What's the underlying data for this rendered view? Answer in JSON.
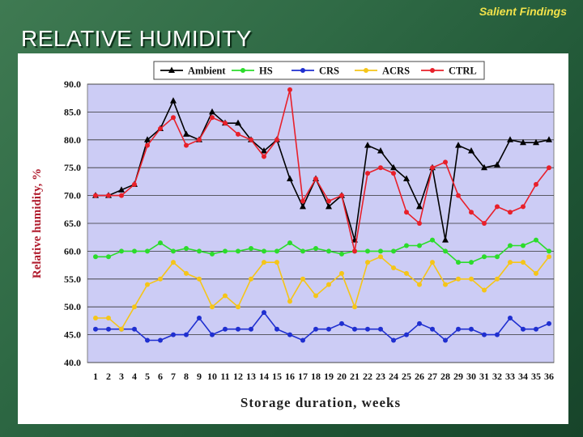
{
  "header": {
    "top_label": "Salient Findings",
    "title": "RELATIVE HUMIDITY"
  },
  "chart_data": {
    "type": "line",
    "xlabel": "Storage duration, weeks",
    "ylabel": "Relative humidity, %",
    "ylim": [
      40.0,
      90.0
    ],
    "yticks": [
      "40.0",
      "45.0",
      "50.0",
      "55.0",
      "60.0",
      "65.0",
      "70.0",
      "75.0",
      "80.0",
      "85.0",
      "90.0"
    ],
    "x": [
      1,
      2,
      3,
      4,
      5,
      6,
      7,
      8,
      9,
      10,
      11,
      12,
      13,
      14,
      15,
      16,
      17,
      18,
      19,
      20,
      21,
      22,
      23,
      24,
      25,
      26,
      27,
      28,
      29,
      30,
      31,
      32,
      33,
      34,
      35,
      36
    ],
    "grid": "horizontal",
    "legend_position": "top",
    "plot_background": "#ccccf5",
    "series": [
      {
        "name": "Ambient",
        "color": "#000000",
        "marker": "triangle",
        "values": [
          70,
          70,
          71,
          72,
          80,
          82,
          87,
          81,
          80,
          85,
          83,
          83,
          80,
          78,
          80,
          73,
          68,
          73,
          68,
          70,
          62,
          79,
          78,
          75,
          73,
          68,
          75,
          62,
          79,
          78,
          75,
          75.5,
          80,
          79.5,
          79.5,
          80
        ]
      },
      {
        "name": "HS",
        "color": "#2bdc2b",
        "marker": "circle",
        "values": [
          59,
          59,
          60,
          60,
          60,
          61.5,
          60,
          60.5,
          60,
          59.5,
          60,
          60,
          60.5,
          60,
          60,
          61.5,
          60,
          60.5,
          60,
          59.5,
          60,
          60,
          60,
          60,
          61,
          61,
          62,
          60,
          58,
          58,
          59,
          59,
          61,
          61,
          62,
          60
        ]
      },
      {
        "name": "CRS",
        "color": "#1f2fd0",
        "marker": "circle",
        "values": [
          46,
          46,
          46,
          46,
          44,
          44,
          45,
          45,
          48,
          45,
          46,
          46,
          46,
          49,
          46,
          45,
          44,
          46,
          46,
          47,
          46,
          46,
          46,
          44,
          45,
          47,
          46,
          44,
          46,
          46,
          45,
          45,
          48,
          46,
          46,
          47
        ]
      },
      {
        "name": "ACRS",
        "color": "#f5c518",
        "marker": "circle",
        "values": [
          48,
          48,
          46,
          50,
          54,
          55,
          58,
          56,
          55,
          50,
          52,
          50,
          55,
          58,
          58,
          51,
          55,
          52,
          54,
          56,
          50,
          58,
          59,
          57,
          56,
          54,
          58,
          54,
          55,
          55,
          53,
          55,
          58,
          58,
          56,
          59
        ]
      },
      {
        "name": "CTRL",
        "color": "#e8202a",
        "marker": "circle",
        "values": [
          70,
          70,
          70,
          72,
          79,
          82,
          84,
          79,
          80,
          84,
          83,
          81,
          80,
          77,
          80,
          89,
          69,
          73,
          69,
          70,
          60,
          74,
          75,
          74,
          67,
          65,
          75,
          76,
          70,
          67,
          65,
          68,
          67,
          68,
          72,
          75
        ]
      }
    ]
  }
}
